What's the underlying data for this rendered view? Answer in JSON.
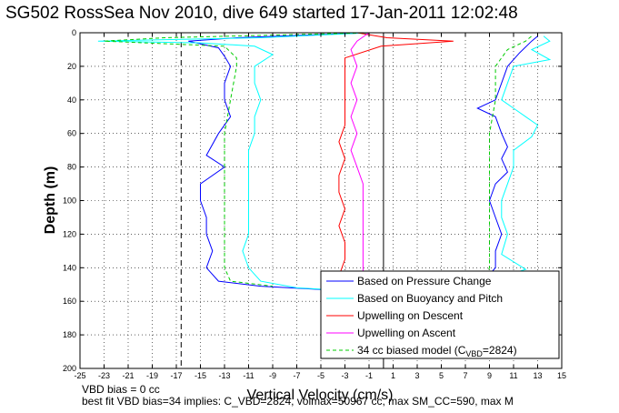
{
  "chart_data": {
    "type": "line",
    "title": "SG502 RossSea Nov 2010, dive 649 started 17-Jan-2011 12:02:48",
    "xlabel": "Vertical Velocity (cm/s)",
    "ylabel": "Depth (m)",
    "xlim": [
      -25,
      15
    ],
    "ylim": [
      0,
      200
    ],
    "y_reversed": true,
    "x_ticks": [
      -25,
      -23,
      -21,
      -19,
      -17,
      -15,
      -13,
      -11,
      -9,
      -7,
      -5,
      -3,
      -1,
      1,
      3,
      5,
      7,
      9,
      11,
      13,
      15
    ],
    "y_ticks": [
      0,
      20,
      40,
      60,
      80,
      100,
      120,
      140,
      160,
      180,
      200
    ],
    "grid": true,
    "legend_position": "lower-right",
    "reference_lines": [
      {
        "x": -16.6,
        "style": "dashed",
        "color": "#000000"
      },
      {
        "x": 0.2,
        "style": "solid",
        "color": "#000000"
      }
    ],
    "series": [
      {
        "name": "Based on Pressure Change",
        "color": "#0000ff",
        "style": "solid",
        "descent": [
          [
            -1,
            0
          ],
          [
            -12,
            3
          ],
          [
            -16,
            5
          ],
          [
            -13.5,
            9
          ],
          [
            -13,
            14
          ],
          [
            -12.5,
            20
          ],
          [
            -13,
            30
          ],
          [
            -13,
            40
          ],
          [
            -12.5,
            50
          ],
          [
            -13.5,
            60
          ],
          [
            -14.5,
            73
          ],
          [
            -13,
            80
          ],
          [
            -15,
            90
          ],
          [
            -15,
            100
          ],
          [
            -14.5,
            110
          ],
          [
            -14.5,
            120
          ],
          [
            -14,
            130
          ],
          [
            -14.5,
            140
          ],
          [
            -13.5,
            148
          ],
          [
            -10,
            151
          ],
          [
            -5,
            153
          ]
        ],
        "ascent": [
          [
            -4.5,
            153
          ],
          [
            8.5,
            148
          ],
          [
            9.5,
            140
          ],
          [
            9.5,
            130
          ],
          [
            10,
            120
          ],
          [
            9.5,
            110
          ],
          [
            9,
            100
          ],
          [
            9.5,
            90
          ],
          [
            10.5,
            83
          ],
          [
            10,
            75
          ],
          [
            10.5,
            68
          ],
          [
            10,
            60
          ],
          [
            9.5,
            50
          ],
          [
            8,
            45
          ],
          [
            9.5,
            40
          ],
          [
            10,
            30
          ],
          [
            10.5,
            20
          ],
          [
            11.5,
            12
          ],
          [
            12.5,
            5
          ],
          [
            13,
            2
          ]
        ]
      },
      {
        "name": "Based on Buoyancy and Pitch",
        "color": "#00ffff",
        "style": "solid",
        "descent": [
          [
            -1,
            0
          ],
          [
            -10,
            3
          ],
          [
            -23.5,
            5
          ],
          [
            -15,
            6
          ],
          [
            -10.5,
            8
          ],
          [
            -9,
            13
          ],
          [
            -10.5,
            20
          ],
          [
            -10.5,
            30
          ],
          [
            -10,
            40
          ],
          [
            -10.5,
            50
          ],
          [
            -10.5,
            60
          ],
          [
            -11,
            70
          ],
          [
            -11,
            80
          ],
          [
            -11,
            90
          ],
          [
            -11,
            100
          ],
          [
            -11,
            110
          ],
          [
            -11,
            120
          ],
          [
            -11.5,
            130
          ],
          [
            -11,
            140
          ],
          [
            -10,
            148
          ],
          [
            -7,
            152
          ],
          [
            -4.5,
            153
          ]
        ],
        "ascent": [
          [
            -4,
            153
          ],
          [
            8,
            150
          ],
          [
            12,
            141
          ],
          [
            10,
            132
          ],
          [
            10.5,
            120
          ],
          [
            10,
            110
          ],
          [
            10,
            100
          ],
          [
            10.5,
            90
          ],
          [
            11,
            80
          ],
          [
            11,
            70
          ],
          [
            12.5,
            62
          ],
          [
            13,
            55
          ],
          [
            12,
            50
          ],
          [
            11,
            45
          ],
          [
            10,
            40
          ],
          [
            10.5,
            30
          ],
          [
            11,
            20
          ],
          [
            14,
            16
          ],
          [
            12.5,
            10
          ],
          [
            14,
            5
          ],
          [
            13.5,
            2
          ]
        ]
      },
      {
        "name": "Upwelling on Descent",
        "color": "#ff0000",
        "style": "solid",
        "points": [
          [
            -2,
            0
          ],
          [
            0.5,
            3
          ],
          [
            6,
            5
          ],
          [
            0,
            8
          ],
          [
            -3,
            15
          ],
          [
            -3,
            25
          ],
          [
            -3,
            35
          ],
          [
            -3,
            45
          ],
          [
            -3,
            55
          ],
          [
            -3.5,
            65
          ],
          [
            -3,
            75
          ],
          [
            -3.5,
            85
          ],
          [
            -3.5,
            95
          ],
          [
            -3,
            105
          ],
          [
            -3.5,
            115
          ],
          [
            -3,
            125
          ],
          [
            -3,
            135
          ],
          [
            -3.5,
            145
          ],
          [
            -3,
            150
          ]
        ]
      },
      {
        "name": "Upwelling on Ascent",
        "color": "#ff00ff",
        "style": "solid",
        "points": [
          [
            -1,
            0
          ],
          [
            -2,
            5
          ],
          [
            -2.5,
            10
          ],
          [
            -2,
            20
          ],
          [
            -2.5,
            30
          ],
          [
            -2,
            40
          ],
          [
            -2.5,
            50
          ],
          [
            -2,
            60
          ],
          [
            -2.5,
            70
          ],
          [
            -2,
            80
          ],
          [
            -1.5,
            90
          ],
          [
            -1.5,
            100
          ],
          [
            -1.5,
            110
          ],
          [
            -1.5,
            120
          ],
          [
            -1.5,
            130
          ],
          [
            -1.5,
            140
          ],
          [
            -1.5,
            150
          ]
        ]
      },
      {
        "name": "34 cc biased model (C_VBD=2824)",
        "color": "#00cc00",
        "style": "dashed",
        "descent": [
          [
            -1,
            0
          ],
          [
            -18,
            3
          ],
          [
            -23,
            5
          ],
          [
            -13,
            8
          ],
          [
            -12,
            15
          ],
          [
            -12,
            20
          ],
          [
            -12.5,
            40
          ],
          [
            -13,
            60
          ],
          [
            -13,
            80
          ],
          [
            -13,
            100
          ],
          [
            -13,
            120
          ],
          [
            -13,
            140
          ],
          [
            -12.5,
            148
          ],
          [
            -9,
            151
          ]
        ],
        "ascent": [
          [
            8.5,
            148
          ],
          [
            9,
            140
          ],
          [
            9,
            120
          ],
          [
            9,
            100
          ],
          [
            9,
            80
          ],
          [
            9,
            60
          ],
          [
            9.5,
            40
          ],
          [
            9.5,
            20
          ],
          [
            10.5,
            10
          ],
          [
            12,
            5
          ],
          [
            12.5,
            2
          ]
        ]
      }
    ]
  },
  "legend": [
    {
      "text": "Based on Pressure Change"
    },
    {
      "text": "Based on Buoyancy and Pitch"
    },
    {
      "text": "Upwelling on Descent"
    },
    {
      "text": "Upwelling on Ascent"
    },
    {
      "text": "34 cc biased model (C",
      "sub": "VBD",
      "tail": "=2824)"
    }
  ],
  "notes": {
    "vbd_bias": "VBD bias = 0 cc",
    "best_fit": "best fit VBD bias=34 implies: C_VBD=2824, volmax=50967 cc, max SM_CC=590, max M"
  }
}
